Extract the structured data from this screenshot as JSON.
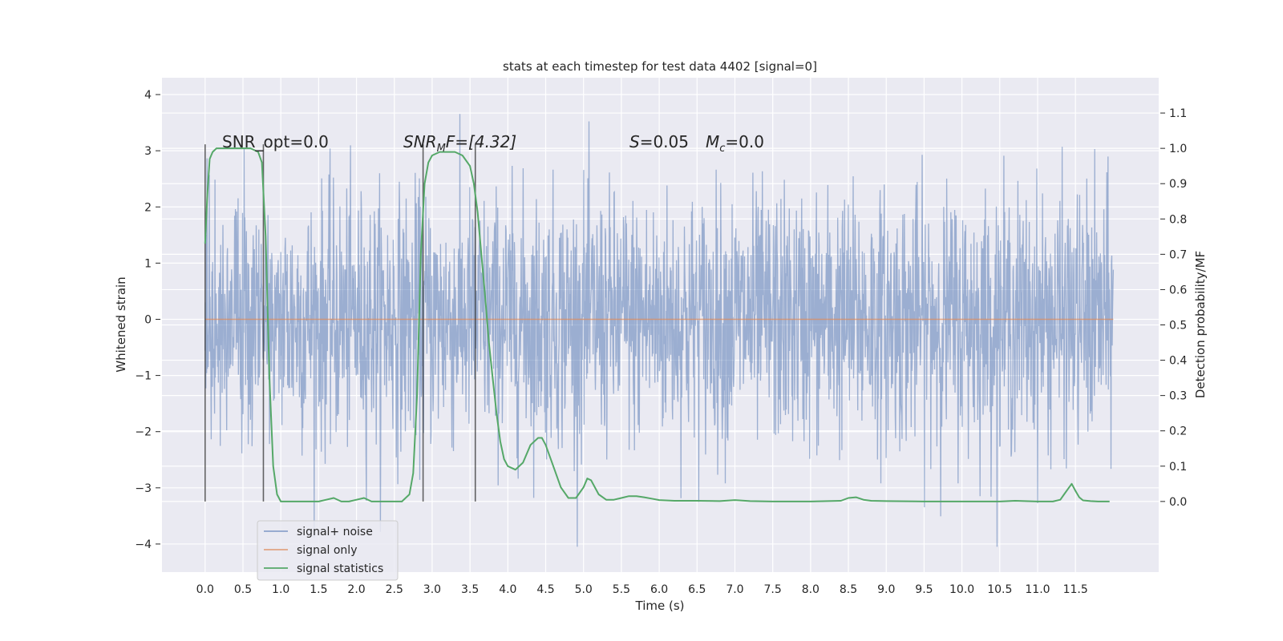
{
  "chart_data": {
    "type": "line",
    "title": "stats at each timestep for test data 4402 [signal=0]",
    "xlabel": "Time (s)",
    "ylabel": "Whitened strain",
    "y2label": "Detection probability/MF",
    "xlim": [
      -0.57,
      12.6
    ],
    "ylim": [
      -4.5,
      4.3
    ],
    "y2lim": [
      -0.2,
      1.2
    ],
    "x_ticks": [
      "0.0",
      "0.5",
      "1.0",
      "1.5",
      "2.0",
      "2.5",
      "3.0",
      "3.5",
      "4.0",
      "4.5",
      "5.0",
      "5.5",
      "6.0",
      "6.5",
      "7.0",
      "7.5",
      "8.0",
      "8.5",
      "9.0",
      "9.5",
      "10.0",
      "10.5",
      "11.0",
      "11.5"
    ],
    "y_ticks": [
      "4",
      "3",
      "2",
      "1",
      "0",
      "−1",
      "−2",
      "−3",
      "−4"
    ],
    "y2_ticks": [
      "1.1",
      "1.0",
      "0.9",
      "0.8",
      "0.7",
      "0.6",
      "0.5",
      "0.4",
      "0.3",
      "0.2",
      "0.1",
      "0.0"
    ],
    "grid": true,
    "legend_position": "lower-left",
    "annotations": {
      "snr_opt": "SNR_opt=0.0",
      "snr_mf_label": "SNR",
      "snr_mf_sub": "M",
      "snr_mf_value": "F=[4.32]",
      "s_label": "S",
      "s_value": "=0.05",
      "mc_label": "M",
      "mc_sub": "c",
      "mc_value": "=0.0"
    },
    "vertical_markers_x": [
      0.0,
      0.77,
      2.88,
      3.57
    ],
    "series": [
      {
        "name": "signal+ noise",
        "axis": "left",
        "color": "#4c72b0",
        "description_amplitude": {
          "typical_envelope": 1.8,
          "max_peak": 3.92,
          "min_peak": -4.05
        },
        "x_range": [
          0.0,
          12.0
        ]
      },
      {
        "name": "signal only",
        "axis": "left",
        "color": "#dd8452",
        "x": [
          0.0,
          12.0
        ],
        "values": [
          0.0,
          0.0
        ]
      },
      {
        "name": "signal statistics",
        "axis": "right",
        "color": "#55a868",
        "x": [
          0.0,
          0.03,
          0.06,
          0.1,
          0.15,
          0.2,
          0.3,
          0.4,
          0.5,
          0.6,
          0.7,
          0.75,
          0.8,
          0.85,
          0.9,
          0.95,
          1.0,
          1.1,
          1.3,
          1.5,
          1.6,
          1.7,
          1.8,
          1.9,
          2.0,
          2.1,
          2.2,
          2.3,
          2.4,
          2.5,
          2.6,
          2.7,
          2.75,
          2.8,
          2.85,
          2.9,
          2.95,
          3.0,
          3.1,
          3.2,
          3.3,
          3.4,
          3.5,
          3.55,
          3.6,
          3.65,
          3.7,
          3.75,
          3.8,
          3.85,
          3.9,
          3.95,
          4.0,
          4.1,
          4.2,
          4.3,
          4.4,
          4.45,
          4.5,
          4.6,
          4.7,
          4.8,
          4.9,
          5.0,
          5.05,
          5.1,
          5.2,
          5.3,
          5.4,
          5.5,
          5.6,
          5.7,
          5.8,
          5.9,
          6.0,
          6.2,
          6.5,
          6.8,
          7.0,
          7.2,
          7.5,
          8.0,
          8.4,
          8.5,
          8.6,
          8.7,
          8.8,
          9.0,
          9.5,
          10.0,
          10.5,
          10.7,
          11.0,
          11.2,
          11.3,
          11.35,
          11.4,
          11.45,
          11.5,
          11.55,
          11.6,
          11.7,
          11.8,
          11.95
        ],
        "values": [
          0.73,
          0.87,
          0.97,
          0.99,
          1.0,
          1.0,
          1.0,
          1.0,
          1.0,
          1.0,
          0.99,
          0.96,
          0.75,
          0.35,
          0.1,
          0.02,
          0.0,
          0.0,
          0.0,
          0.0,
          0.005,
          0.01,
          0.0,
          0.0,
          0.005,
          0.01,
          0.0,
          0.0,
          0.0,
          0.0,
          0.0,
          0.02,
          0.08,
          0.3,
          0.7,
          0.9,
          0.96,
          0.98,
          0.99,
          0.99,
          0.99,
          0.98,
          0.95,
          0.9,
          0.82,
          0.7,
          0.58,
          0.45,
          0.35,
          0.25,
          0.17,
          0.12,
          0.1,
          0.09,
          0.11,
          0.16,
          0.18,
          0.18,
          0.16,
          0.1,
          0.04,
          0.01,
          0.01,
          0.04,
          0.065,
          0.06,
          0.02,
          0.005,
          0.005,
          0.01,
          0.015,
          0.015,
          0.012,
          0.008,
          0.004,
          0.002,
          0.002,
          0.001,
          0.004,
          0.001,
          0.0,
          0.0,
          0.002,
          0.01,
          0.012,
          0.005,
          0.002,
          0.001,
          0.0,
          0.0,
          0.0,
          0.002,
          0.0,
          0.0,
          0.005,
          0.02,
          0.035,
          0.05,
          0.03,
          0.012,
          0.003,
          0.001,
          0.0,
          0.0
        ]
      }
    ]
  }
}
